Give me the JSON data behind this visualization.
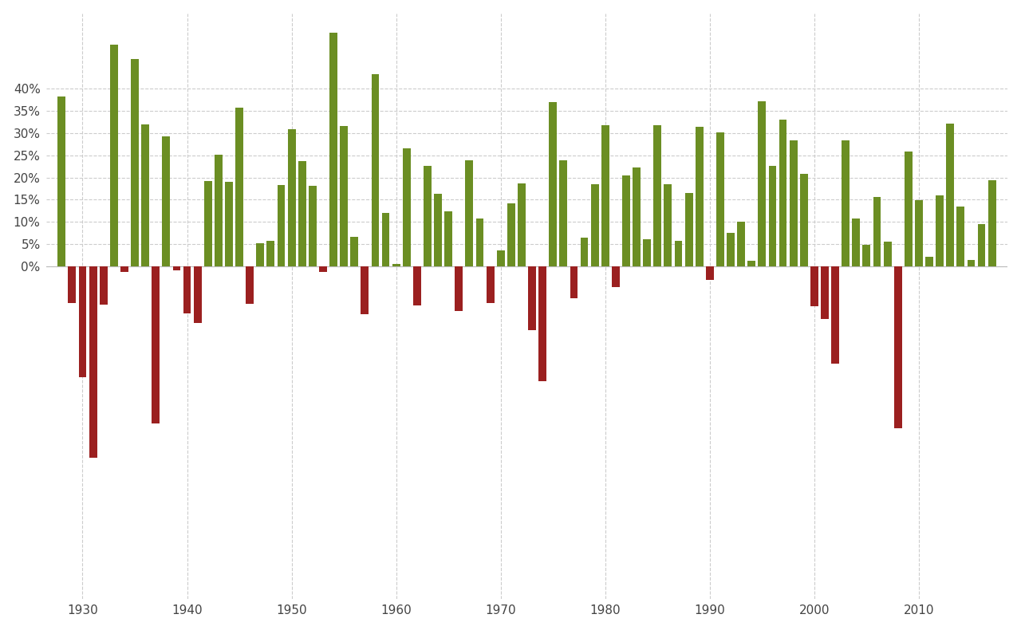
{
  "years": [
    1928,
    1929,
    1930,
    1931,
    1932,
    1933,
    1934,
    1935,
    1936,
    1937,
    1938,
    1939,
    1940,
    1941,
    1942,
    1943,
    1944,
    1945,
    1946,
    1947,
    1948,
    1949,
    1950,
    1951,
    1952,
    1953,
    1954,
    1955,
    1956,
    1957,
    1958,
    1959,
    1960,
    1961,
    1962,
    1963,
    1964,
    1965,
    1966,
    1967,
    1968,
    1969,
    1970,
    1971,
    1972,
    1973,
    1974,
    1975,
    1976,
    1977,
    1978,
    1979,
    1980,
    1981,
    1982,
    1983,
    1984,
    1985,
    1986,
    1987,
    1988,
    1989,
    1990,
    1991,
    1992,
    1993,
    1994,
    1995,
    1996,
    1997,
    1998,
    1999,
    2000,
    2001,
    2002,
    2003,
    2004,
    2005,
    2006,
    2007,
    2008,
    2009,
    2010,
    2011,
    2012,
    2013,
    2014,
    2015,
    2016,
    2017
  ],
  "returns": [
    38.17,
    -8.3,
    -24.9,
    -43.13,
    -8.64,
    49.98,
    -1.19,
    46.74,
    31.94,
    -35.34,
    29.28,
    -0.91,
    -10.67,
    -12.77,
    19.17,
    25.06,
    19.03,
    35.82,
    -8.43,
    5.2,
    5.7,
    18.3,
    30.81,
    23.68,
    18.15,
    -1.21,
    52.56,
    31.56,
    6.56,
    -10.78,
    43.36,
    11.96,
    0.47,
    26.64,
    -8.73,
    22.61,
    16.42,
    12.4,
    -10.06,
    23.8,
    10.81,
    -8.24,
    3.56,
    14.22,
    18.76,
    -14.31,
    -25.9,
    37.0,
    23.83,
    -7.18,
    6.51,
    18.44,
    31.74,
    -4.7,
    20.42,
    22.34,
    6.15,
    31.73,
    18.49,
    5.81,
    16.54,
    31.48,
    -3.06,
    30.23,
    7.49,
    9.97,
    1.33,
    37.2,
    22.68,
    33.1,
    28.34,
    20.89,
    -9.03,
    -11.85,
    -21.97,
    28.36,
    10.74,
    4.83,
    15.61,
    5.48,
    -36.55,
    25.94,
    14.82,
    2.1,
    15.89,
    32.15,
    13.52,
    1.38,
    9.54,
    19.42
  ],
  "pos_color": "#6b8e23",
  "neg_color": "#9b2020",
  "background_color": "#ffffff",
  "grid_color": "#cccccc",
  "bar_width": 0.75,
  "pos_ytick_values": [
    0,
    5,
    10,
    15,
    20,
    25,
    30,
    35,
    40
  ],
  "xtick_years": [
    1930,
    1940,
    1950,
    1960,
    1970,
    1980,
    1990,
    2000,
    2010
  ],
  "ylim_bottom": -75,
  "ylim_top": 57
}
